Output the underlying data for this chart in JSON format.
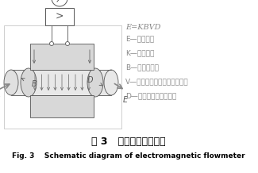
{
  "title_cn": "图 3   电磁流量计原理图",
  "title_en": "Fig. 3    Schematic diagram of electromagnetic flowmeter",
  "formula": "E=KBVD",
  "legend_lines": [
    "E—感应电势",
    "K—仪表常数",
    "B—磁感应强度",
    "V—测量管道截面内的平均流速",
    "D—测量管道截面的内径"
  ],
  "line_color": "#555555",
  "light_gray": "#cccccc",
  "dark_gray": "#444444",
  "arrow_color": "#666666",
  "text_color": "#555555",
  "legend_color": "#888888"
}
